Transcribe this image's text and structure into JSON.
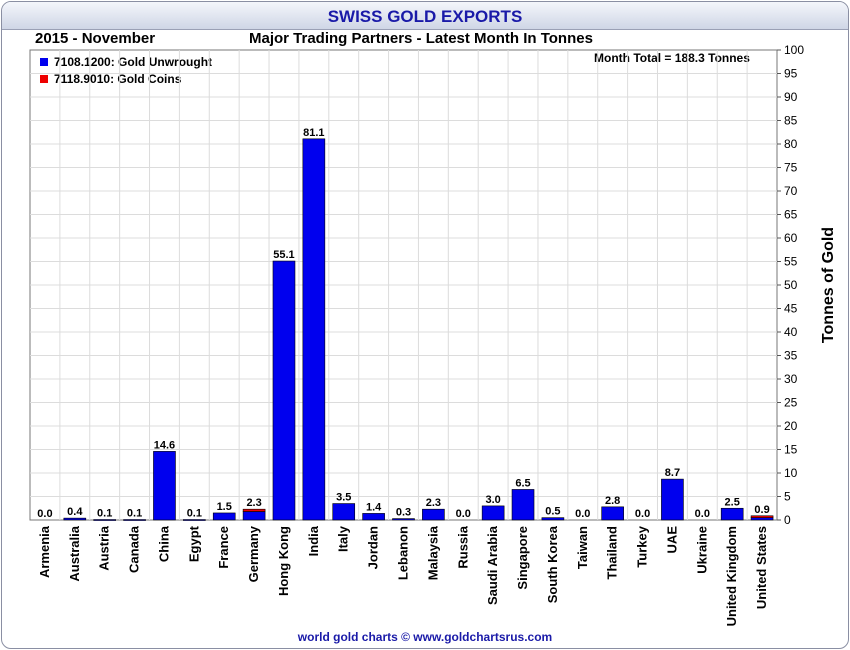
{
  "header": {
    "title": "SWISS GOLD EXPORTS",
    "period": "2015 - November",
    "subtitle": "Major Trading Partners - Latest Month In Tonnes",
    "month_total": "Month Total = 188.3 Tonnes",
    "footer": "world gold charts © www.goldchartsrus.com"
  },
  "colors": {
    "unwrought": "#0000ee",
    "coins": "#ee0000",
    "title_text": "#1a1aa8"
  },
  "chart_data": {
    "type": "bar",
    "stacked": true,
    "title": "SWISS GOLD EXPORTS",
    "xlabel": "",
    "ylabel": "Tonnes of Gold",
    "ylim": [
      0,
      100
    ],
    "ytick_step": 5,
    "grid": true,
    "legend_position": "top-left",
    "categories": [
      "Armenia",
      "Australia",
      "Austria",
      "Canada",
      "China",
      "Egypt",
      "France",
      "Germany",
      "Hong Kong",
      "India",
      "Italy",
      "Jordan",
      "Lebanon",
      "Malaysia",
      "Russia",
      "Saudi Arabia",
      "Singapore",
      "South Korea",
      "Taiwan",
      "Thailand",
      "Turkey",
      "UAE",
      "Ukraine",
      "United Kingdom",
      "United States"
    ],
    "series": [
      {
        "name": "7108.1200: Gold Unwrought",
        "values": [
          0.0,
          0.4,
          0.1,
          0.1,
          14.6,
          0.1,
          1.5,
          1.8,
          55.1,
          81.1,
          3.5,
          1.4,
          0.3,
          2.3,
          0.0,
          3.0,
          6.5,
          0.5,
          0.0,
          2.8,
          0.0,
          8.7,
          0.0,
          2.5,
          0.5
        ]
      },
      {
        "name": "7118.9010: Gold Coins",
        "values": [
          0.0,
          0.0,
          0.0,
          0.0,
          0.0,
          0.0,
          0.0,
          0.5,
          0.0,
          0.0,
          0.0,
          0.0,
          0.0,
          0.0,
          0.0,
          0.0,
          0.0,
          0.0,
          0.0,
          0.0,
          0.0,
          0.0,
          0.0,
          0.0,
          0.4
        ]
      }
    ],
    "totals": [
      "0.0",
      "0.4",
      "0.1",
      "0.1",
      "14.6",
      "0.1",
      "1.5",
      "2.3",
      "55.1",
      "81.1",
      "3.5",
      "1.4",
      "0.3",
      "2.3",
      "0.0",
      "3.0",
      "6.5",
      "0.5",
      "0.0",
      "2.8",
      "0.0",
      "8.7",
      "0.0",
      "2.5",
      "0.9"
    ]
  }
}
